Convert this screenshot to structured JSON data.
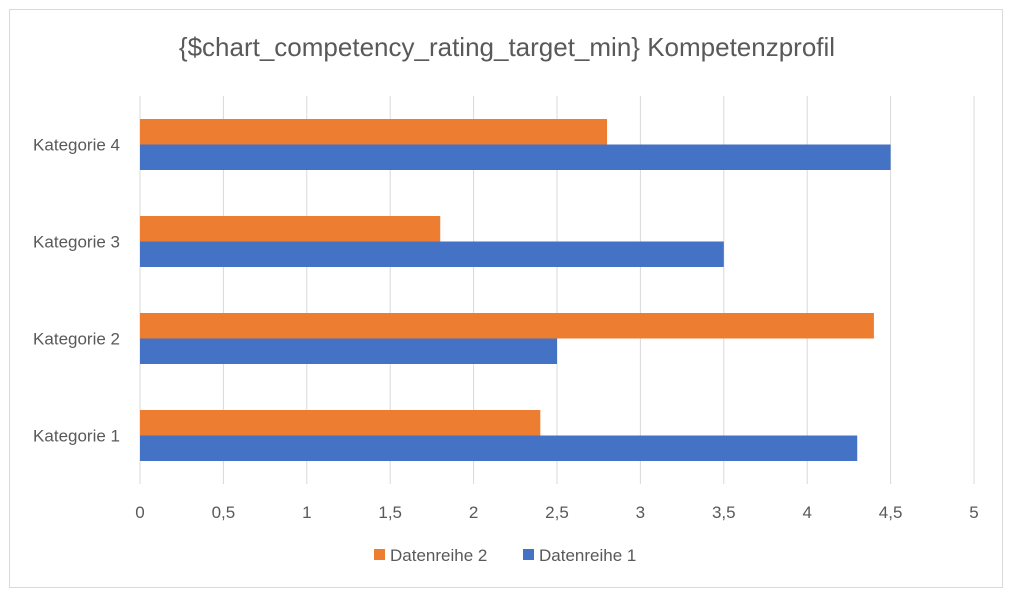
{
  "chart_data": {
    "type": "bar",
    "orientation": "horizontal",
    "title": "{$chart_competency_rating_target_min} Kompetenzprofil",
    "categories": [
      "Kategorie 1",
      "Kategorie 2",
      "Kategorie 3",
      "Kategorie 4"
    ],
    "series": [
      {
        "name": "Datenreihe 1",
        "color": "#4472c4",
        "values": [
          4.3,
          2.5,
          3.5,
          4.5
        ]
      },
      {
        "name": "Datenreihe 2",
        "color": "#ed7d31",
        "values": [
          2.4,
          4.4,
          1.8,
          2.8
        ]
      }
    ],
    "xlim": [
      0,
      5
    ],
    "xticks": [
      "0",
      "0,5",
      "1",
      "1,5",
      "2",
      "2,5",
      "3",
      "3,5",
      "4",
      "4,5",
      "5"
    ],
    "grid": "vertical",
    "legend": {
      "position": "bottom",
      "items": [
        "Datenreihe 2",
        "Datenreihe 1"
      ]
    }
  }
}
